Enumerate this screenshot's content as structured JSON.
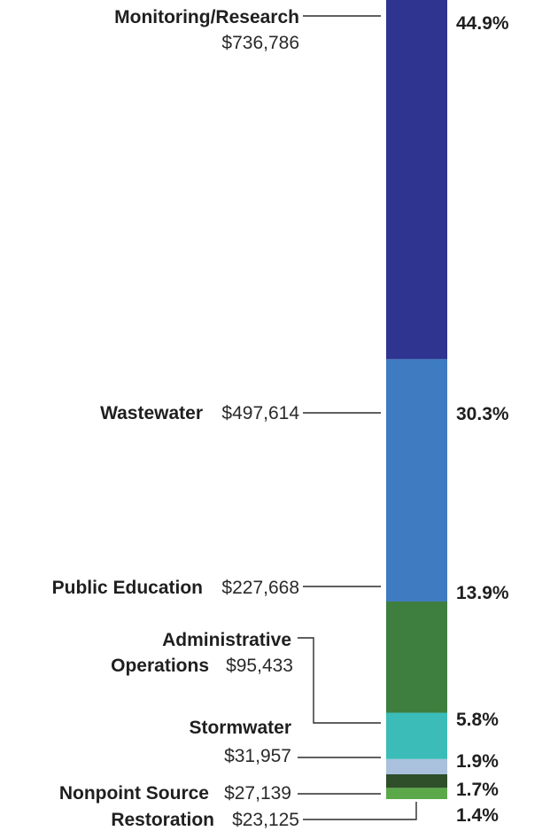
{
  "chart_data": {
    "type": "bar",
    "stacked": true,
    "orientation": "vertical",
    "segments": [
      {
        "category": "Monitoring/Research",
        "amount": "$736,786",
        "percent": "44.9%",
        "value": 44.9,
        "color": "#2E3490"
      },
      {
        "category": "Wastewater",
        "amount": "$497,614",
        "percent": "30.3%",
        "value": 30.3,
        "color": "#3F7BC1"
      },
      {
        "category": "Public Education",
        "amount": "$227,668",
        "percent": "13.9%",
        "value": 13.9,
        "color": "#3E7E3E"
      },
      {
        "category": "Administrative Operations",
        "category_line1": "Administrative",
        "category_line2": "Operations",
        "amount": "$95,433",
        "percent": "5.8%",
        "value": 5.8,
        "color": "#3BBCB8"
      },
      {
        "category": "Stormwater",
        "amount": "$31,957",
        "percent": "1.9%",
        "value": 1.9,
        "color": "#A9C1DC"
      },
      {
        "category": "Nonpoint Source",
        "amount": "$27,139",
        "percent": "1.7%",
        "value": 1.7,
        "color": "#2F4E2A"
      },
      {
        "category": "Restoration",
        "amount": "$23,125",
        "percent": "1.4%",
        "value": 1.4,
        "color": "#5BA84A"
      }
    ]
  }
}
